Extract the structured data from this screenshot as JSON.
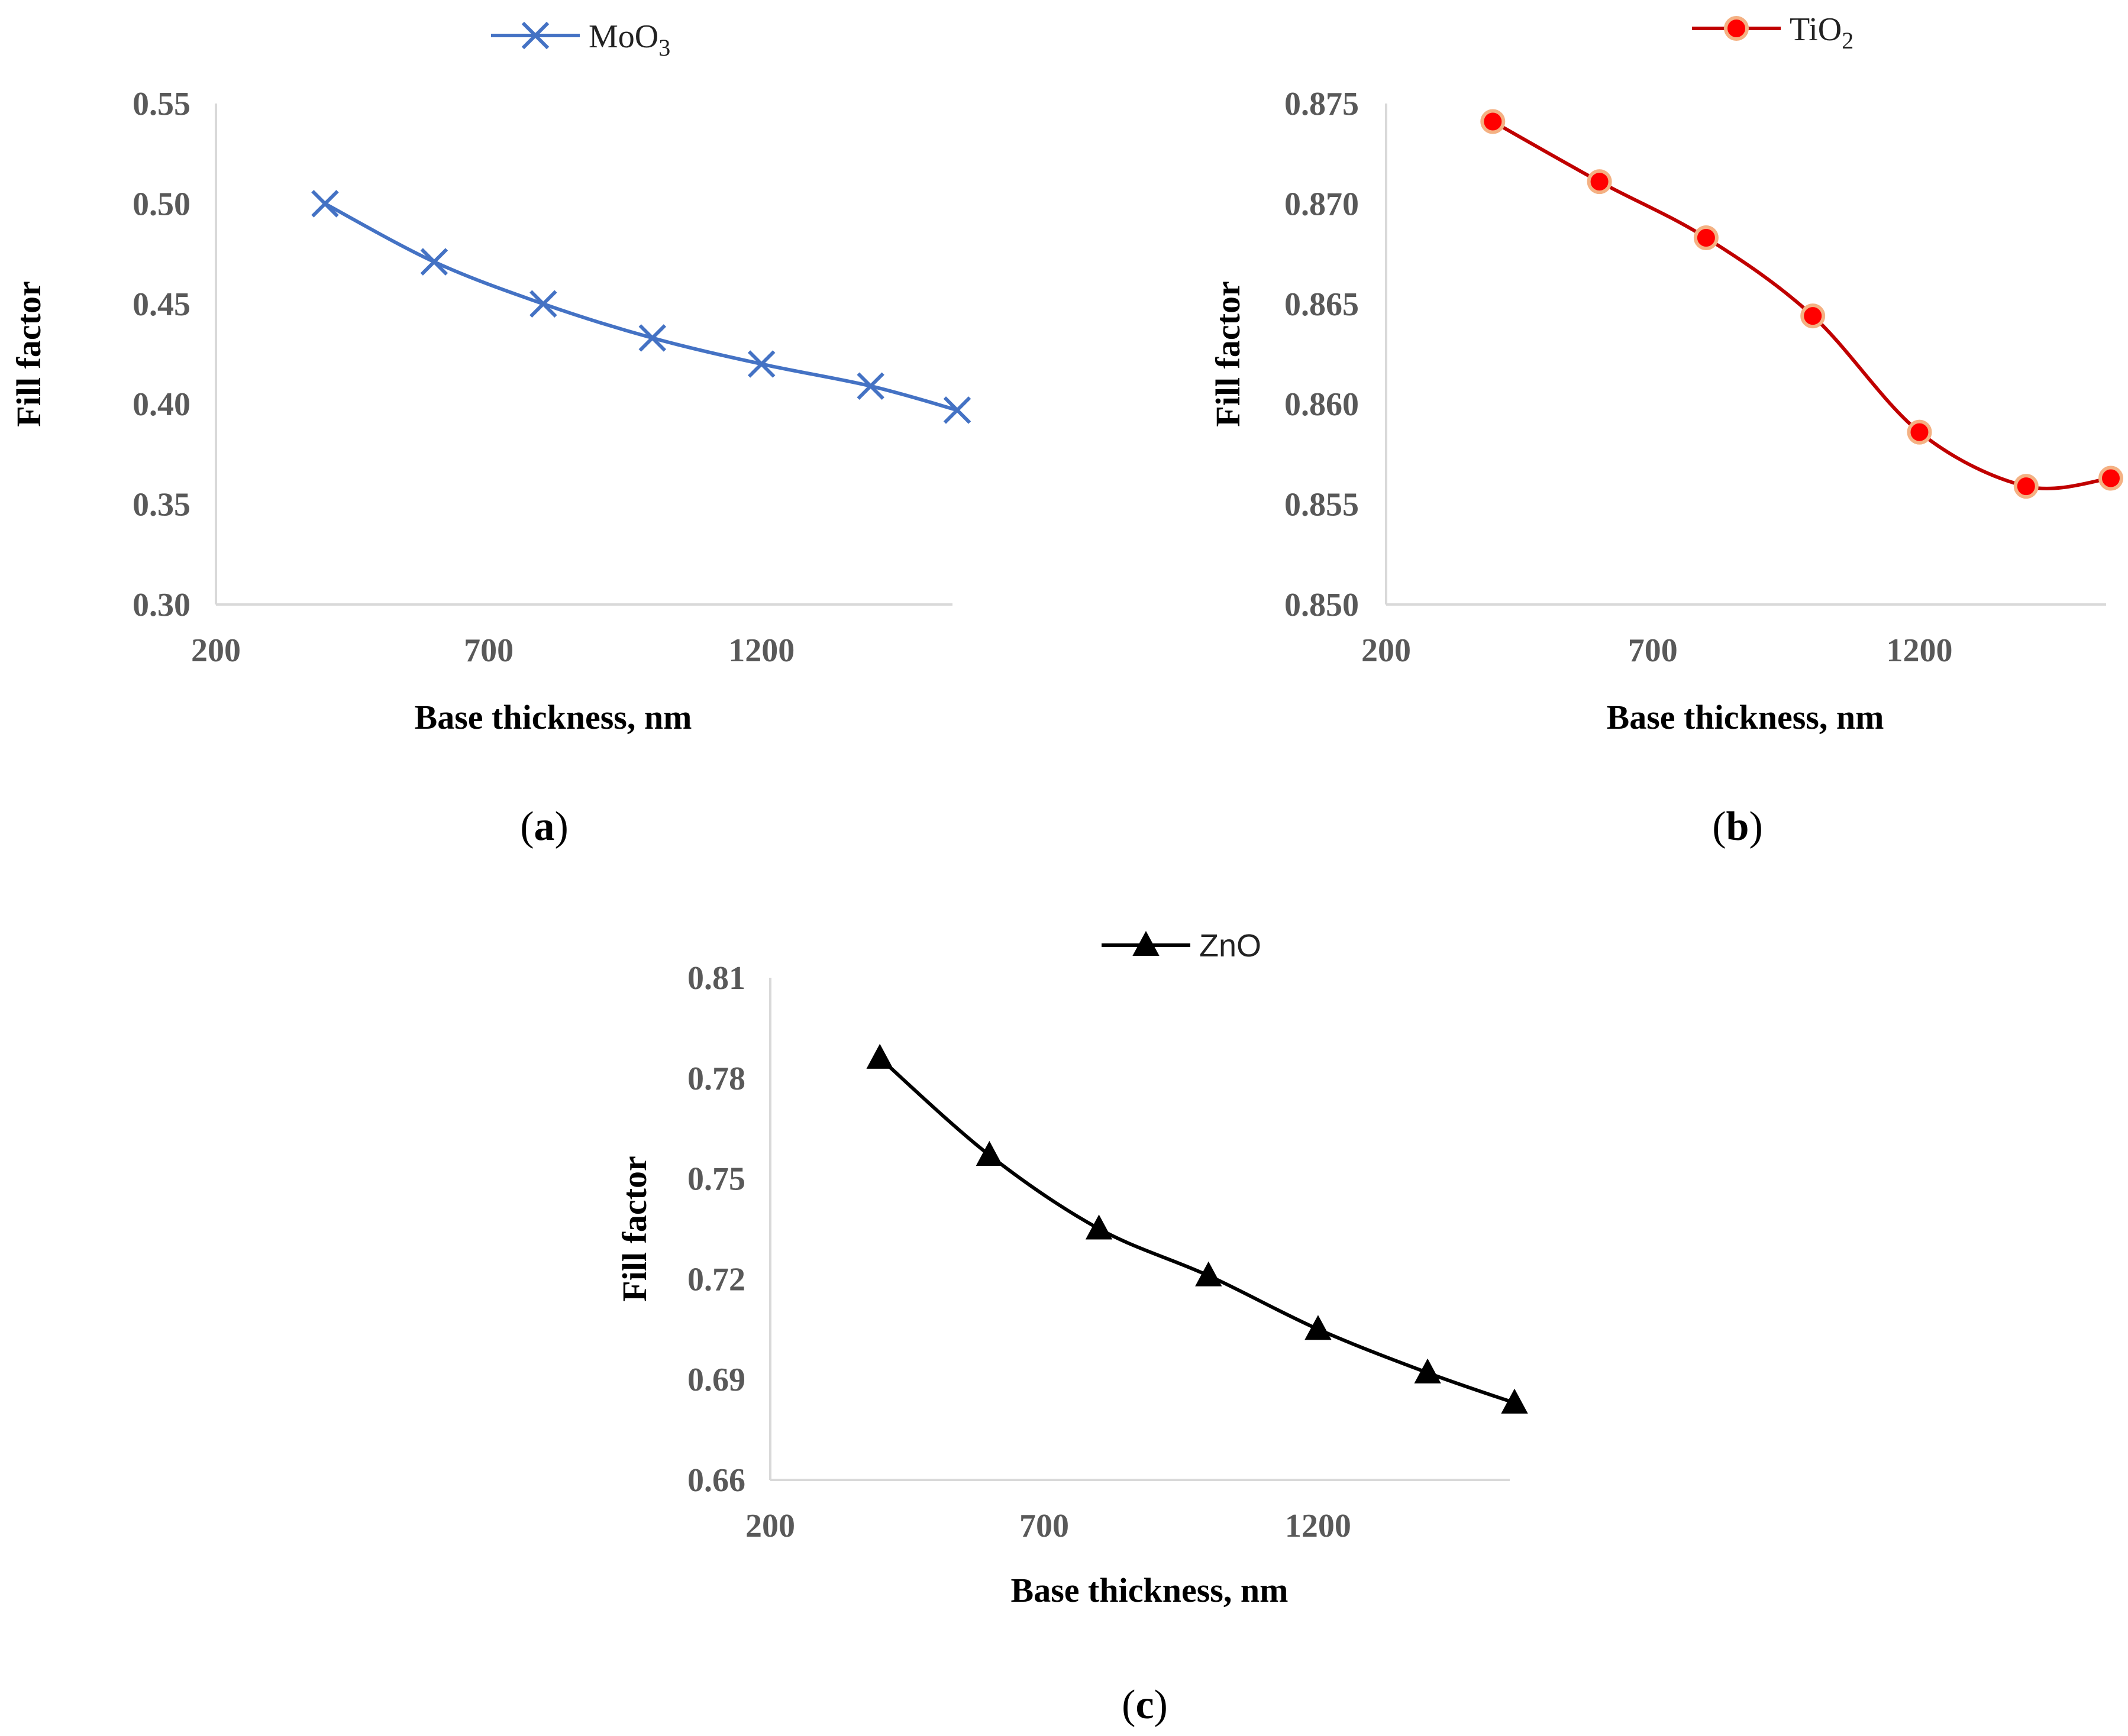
{
  "chart_data": [
    {
      "type": "line",
      "panel_label": "a",
      "title": "",
      "xlabel": "Base thickness, nm",
      "ylabel": "Fill factor",
      "xlim": [
        200,
        1550
      ],
      "ylim": [
        0.3,
        0.55
      ],
      "xticks": [
        "200",
        "700",
        "1200"
      ],
      "yticks": [
        "0.30",
        "0.35",
        "0.40",
        "0.45",
        "0.50",
        "0.55"
      ],
      "grid": false,
      "legend_position": "top-center",
      "series": [
        {
          "name": "MoO3",
          "name_parts": {
            "base": "MoO",
            "sub": "3"
          },
          "marker": "x",
          "color": "#4472c4",
          "x": [
            400,
            600,
            800,
            1000,
            1200,
            1400,
            1600
          ],
          "y": [
            0.5,
            0.471,
            0.45,
            0.433,
            0.42,
            0.409,
            0.397
          ]
        }
      ]
    },
    {
      "type": "line",
      "panel_label": "b",
      "title": "",
      "xlabel": "Base thickness, nm",
      "ylabel": "Fill factor",
      "xlim": [
        200,
        1550
      ],
      "ylim": [
        0.85,
        0.875
      ],
      "xticks": [
        "200",
        "700",
        "1200"
      ],
      "yticks": [
        "0.850",
        "0.855",
        "0.860",
        "0.865",
        "0.870",
        "0.875"
      ],
      "grid": false,
      "legend_position": "top-right",
      "series": [
        {
          "name": "TiO2",
          "name_parts": {
            "base": "TiO",
            "sub": "2"
          },
          "marker": "circle",
          "color": "#c00000",
          "marker_fill": "#ff0000",
          "marker_edge": "#f4b183",
          "x": [
            400,
            600,
            800,
            1000,
            1200,
            1400,
            1600
          ],
          "y": [
            0.8741,
            0.8711,
            0.8683,
            0.8644,
            0.8586,
            0.8559,
            0.8563
          ]
        }
      ]
    },
    {
      "type": "line",
      "panel_label": "c",
      "title": "",
      "xlabel": "Base thickness, nm",
      "ylabel": "Fill factor",
      "xlim": [
        200,
        1550
      ],
      "ylim": [
        0.66,
        0.81
      ],
      "xticks": [
        "200",
        "700",
        "1200"
      ],
      "yticks": [
        "0.66",
        "0.69",
        "0.72",
        "0.75",
        "0.78",
        "0.81"
      ],
      "grid": false,
      "legend_position": "top-center",
      "series": [
        {
          "name": "ZnO",
          "marker": "triangle",
          "color": "#000000",
          "x": [
            400,
            600,
            800,
            1000,
            1200,
            1400,
            1600
          ],
          "y": [
            0.786,
            0.757,
            0.735,
            0.721,
            0.705,
            0.692,
            0.683
          ]
        }
      ]
    }
  ]
}
